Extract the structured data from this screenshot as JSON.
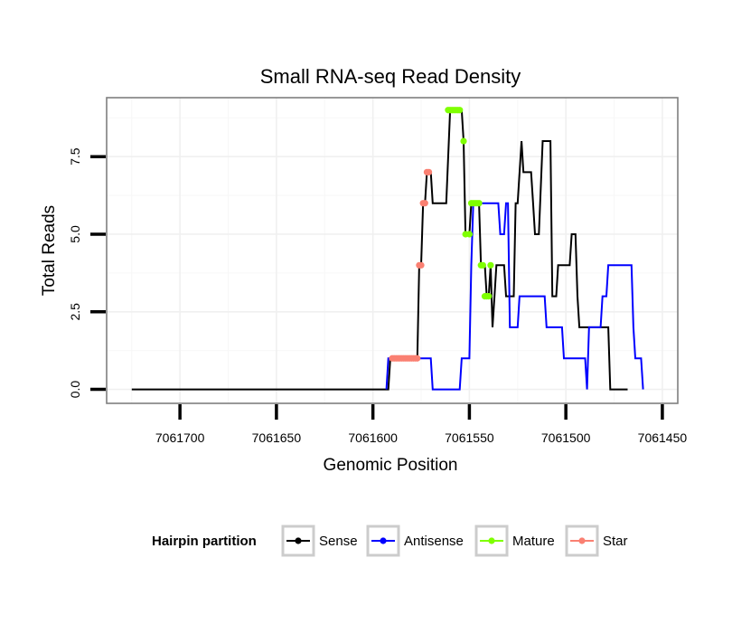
{
  "chart_data": {
    "type": "line",
    "title": "Small RNA-seq Read Density",
    "xlabel": "Genomic Position",
    "ylabel": "Total Reads",
    "x_reversed": true,
    "xlim": [
      7061738,
      7061442
    ],
    "ylim": [
      -0.45,
      9.4
    ],
    "x_ticks": [
      7061700,
      7061650,
      7061600,
      7061550,
      7061500,
      7061450
    ],
    "x_tick_labels": [
      "7061700",
      "7061650",
      "7061600",
      "7061550",
      "7061500",
      "7061450"
    ],
    "y_ticks": [
      0,
      2.5,
      5,
      7.5
    ],
    "y_tick_labels": [
      "0.0",
      "2.5",
      "5.0",
      "7.5"
    ],
    "grid": true,
    "legend": {
      "title": "Hairpin partition",
      "position": "bottom",
      "entries": [
        {
          "name": "Sense",
          "color": "#000000"
        },
        {
          "name": "Antisense",
          "color": "#0000ff"
        },
        {
          "name": "Mature",
          "color": "#7fff00"
        },
        {
          "name": "Star",
          "color": "#fa8072"
        }
      ]
    },
    "series": [
      {
        "name": "Sense",
        "color": "#000000",
        "points": [
          [
            7061725,
            0
          ],
          [
            7061592,
            0
          ],
          [
            7061591,
            1
          ],
          [
            7061577,
            1
          ],
          [
            7061576,
            4
          ],
          [
            7061575,
            4
          ],
          [
            7061574,
            6
          ],
          [
            7061573,
            6
          ],
          [
            7061572,
            7
          ],
          [
            7061570,
            7
          ],
          [
            7061569,
            6
          ],
          [
            7061562,
            6
          ],
          [
            7061560,
            9
          ],
          [
            7061554,
            9
          ],
          [
            7061553,
            8
          ],
          [
            7061552,
            5
          ],
          [
            7061550,
            5
          ],
          [
            7061549,
            6
          ],
          [
            7061545,
            6
          ],
          [
            7061544,
            4
          ],
          [
            7061542,
            4
          ],
          [
            7061541,
            3
          ],
          [
            7061540,
            3
          ],
          [
            7061539,
            4
          ],
          [
            7061538,
            2
          ],
          [
            7061537,
            3
          ],
          [
            7061536,
            4
          ],
          [
            7061532,
            4
          ],
          [
            7061531,
            3
          ],
          [
            7061527,
            3
          ],
          [
            7061526,
            6
          ],
          [
            7061525,
            6
          ],
          [
            7061523,
            8
          ],
          [
            7061522,
            7
          ],
          [
            7061518,
            7
          ],
          [
            7061517,
            6
          ],
          [
            7061516,
            5
          ],
          [
            7061514,
            5
          ],
          [
            7061512,
            8
          ],
          [
            7061508,
            8
          ],
          [
            7061507,
            3
          ],
          [
            7061505,
            3
          ],
          [
            7061504,
            4
          ],
          [
            7061498,
            4
          ],
          [
            7061497,
            5
          ],
          [
            7061495,
            5
          ],
          [
            7061494,
            3
          ],
          [
            7061493,
            2
          ],
          [
            7061478,
            2
          ],
          [
            7061477,
            0
          ],
          [
            7061468,
            0
          ]
        ]
      },
      {
        "name": "Antisense",
        "color": "#0000ff",
        "points": [
          [
            7061593,
            0
          ],
          [
            7061592,
            1
          ],
          [
            7061570,
            1
          ],
          [
            7061569,
            0
          ],
          [
            7061555,
            0
          ],
          [
            7061554,
            1
          ],
          [
            7061550,
            1
          ],
          [
            7061549,
            4
          ],
          [
            7061548,
            6
          ],
          [
            7061535,
            6
          ],
          [
            7061534,
            5
          ],
          [
            7061532,
            5
          ],
          [
            7061531,
            6
          ],
          [
            7061530,
            6
          ],
          [
            7061529,
            2
          ],
          [
            7061525,
            2
          ],
          [
            7061524,
            3
          ],
          [
            7061511,
            3
          ],
          [
            7061510,
            2
          ],
          [
            7061502,
            2
          ],
          [
            7061501,
            1
          ],
          [
            7061490,
            1
          ],
          [
            7061489,
            0
          ],
          [
            7061488,
            2
          ],
          [
            7061482,
            2
          ],
          [
            7061481,
            3
          ],
          [
            7061479,
            3
          ],
          [
            7061478,
            4
          ],
          [
            7061466,
            4
          ],
          [
            7061465,
            2
          ],
          [
            7061464,
            1
          ],
          [
            7061461,
            1
          ],
          [
            7061460,
            0
          ]
        ]
      }
    ],
    "markers": [
      {
        "name": "Mature",
        "color": "#7fff00",
        "points": [
          [
            7061561,
            9
          ],
          [
            7061560,
            9
          ],
          [
            7061559,
            9
          ],
          [
            7061558,
            9
          ],
          [
            7061557,
            9
          ],
          [
            7061556,
            9
          ],
          [
            7061555,
            9
          ],
          [
            7061553,
            8
          ],
          [
            7061552,
            5
          ],
          [
            7061550,
            5
          ],
          [
            7061549,
            6
          ],
          [
            7061548,
            6
          ],
          [
            7061547,
            6
          ],
          [
            7061546,
            6
          ],
          [
            7061545,
            6
          ],
          [
            7061544,
            4
          ],
          [
            7061543,
            4
          ],
          [
            7061542,
            3
          ],
          [
            7061541,
            3
          ],
          [
            7061540,
            3
          ],
          [
            7061539,
            4
          ]
        ]
      },
      {
        "name": "Star",
        "color": "#fa8072",
        "points": [
          [
            7061590,
            1
          ],
          [
            7061589,
            1
          ],
          [
            7061588,
            1
          ],
          [
            7061587,
            1
          ],
          [
            7061586,
            1
          ],
          [
            7061585,
            1
          ],
          [
            7061584,
            1
          ],
          [
            7061583,
            1
          ],
          [
            7061582,
            1
          ],
          [
            7061581,
            1
          ],
          [
            7061580,
            1
          ],
          [
            7061579,
            1
          ],
          [
            7061578,
            1
          ],
          [
            7061577,
            1
          ],
          [
            7061576,
            4
          ],
          [
            7061575,
            4
          ],
          [
            7061574,
            6
          ],
          [
            7061573,
            6
          ],
          [
            7061572,
            7
          ],
          [
            7061571,
            7
          ]
        ]
      }
    ]
  }
}
